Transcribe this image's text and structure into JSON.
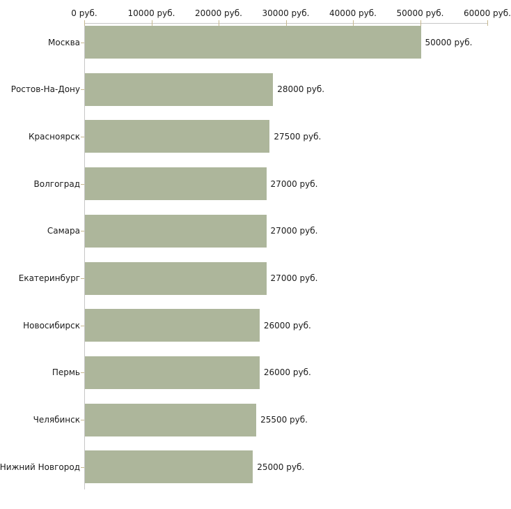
{
  "chart_data": {
    "type": "bar",
    "orientation": "horizontal",
    "title": "",
    "xlabel": "",
    "ylabel": "",
    "grid": false,
    "legend": false,
    "categories": [
      "Москва",
      "Ростов-На-Дону",
      "Красноярск",
      "Волгоград",
      "Самара",
      "Екатеринбург",
      "Новосибирск",
      "Пермь",
      "Челябинск",
      "Нижний Новгород"
    ],
    "values": [
      50000,
      28000,
      27500,
      27000,
      27000,
      27000,
      26000,
      26000,
      25500,
      25000
    ],
    "value_labels": [
      "50000 руб.",
      "28000 руб.",
      "27500 руб.",
      "27000 руб.",
      "27000 руб.",
      "27000 руб.",
      "26000 руб.",
      "26000 руб.",
      "25500 руб.",
      "25000 руб."
    ],
    "x_axis": {
      "position": "top",
      "min": 0,
      "max": 60000,
      "ticks": [
        0,
        10000,
        20000,
        30000,
        40000,
        50000,
        60000
      ],
      "tick_labels": [
        "0 руб.",
        "10000 руб.",
        "20000 руб.",
        "30000 руб.",
        "40000 руб.",
        "50000 руб.",
        "60000 руб."
      ]
    },
    "colors": {
      "bar": "#adb69b",
      "axis_line": "#c6c6c6",
      "tick_mark": "#c6b88e",
      "text": "#1a1a1a",
      "background": "#ffffff"
    }
  }
}
